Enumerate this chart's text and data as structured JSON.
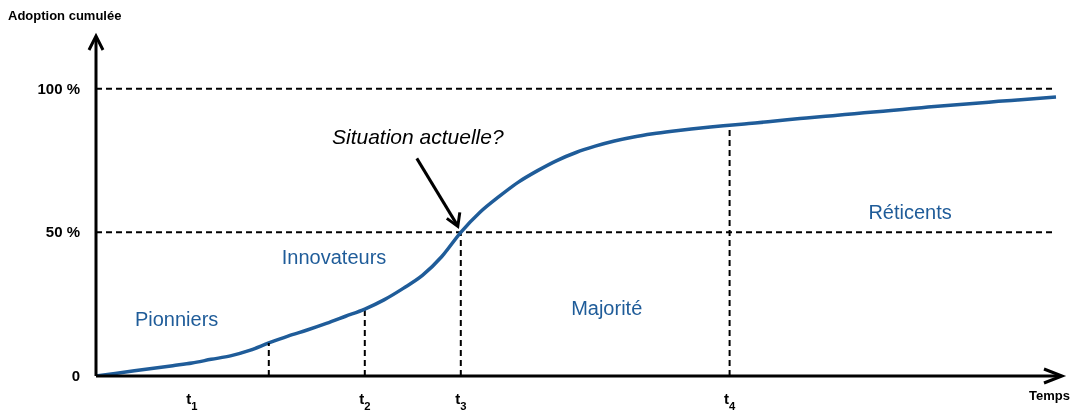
{
  "chart_data": {
    "type": "line",
    "ylabel": "Adoption cumulée",
    "xlabel": "Temps",
    "categories": [
      null,
      null,
      null,
      null,
      null,
      "t$_{1}$",
      null,
      null,
      null,
      null,
      null,
      null,
      null,
      null,
      "t$_{2}$",
      null,
      null,
      null,
      null,
      "t$_{3}$",
      null,
      null,
      null,
      null,
      null,
      null,
      null,
      null,
      null,
      null,
      null,
      null,
      null,
      "t$_{4}$",
      null,
      null,
      null,
      null,
      null,
      null,
      null,
      null,
      null,
      null,
      null,
      null,
      null,
      null,
      null,
      null,
      null
    ],
    "series": [
      {
        "color": "#1f5c99",
        "values": [
          0,
          0.9,
          1.8,
          2.7,
          3.6,
          4.5,
          5.8,
          7,
          8.9,
          11.5,
          13.9,
          16,
          18.3,
          20.8,
          23.3,
          26.5,
          30.5,
          35,
          41.5,
          50,
          57,
          62.5,
          67.5,
          71.5,
          75,
          77.8,
          80,
          81.8,
          83.2,
          84.3,
          85.2,
          86,
          86.7,
          87.3,
          87.9,
          88.5,
          89.2,
          89.8,
          90.4,
          91,
          91.6,
          92.2,
          92.8,
          93.4,
          94,
          94.5,
          95,
          95.6,
          96.1,
          96.6,
          97.1
        ]
      }
    ],
    "ylim": [
      0,
      110
    ],
    "yticks": [
      0,
      {
        "value": 50,
        "label": "50 %"
      },
      {
        "value": 100,
        "label": "100 %"
      }
    ],
    "ref_lines": [
      {
        "axis": "y",
        "value": 50,
        "color": "#000000",
        "line_style": "dashed"
      },
      {
        "axis": "y",
        "value": 100,
        "color": "#000000",
        "line_style": "dashed"
      },
      {
        "axis": "x",
        "value": "t$_{2}$",
        "color": "#000000",
        "line_style": "dashed"
      },
      {
        "axis": "x",
        "value": "t$_{3}$",
        "color": "#000000",
        "line_style": "dashed"
      },
      {
        "axis": "x",
        "value": "t$_{4}$",
        "color": "#000000",
        "line_style": "dashed"
      }
    ],
    "annotations": [
      {
        "text": "Situation actuelle?",
        "x": "t$_{3}$",
        "y": 50
      },
      "Pionniers",
      "Innovateurs",
      "Majorité",
      "Réticents"
    ],
    "legend": false,
    "grid": false,
    "marker": "none",
    "line_style": "solid"
  }
}
